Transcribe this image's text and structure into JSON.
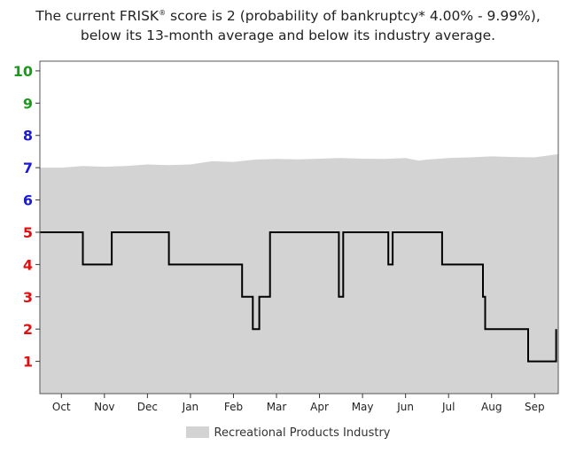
{
  "caption": {
    "line1_before": "The current FRISK",
    "line1_reg": "®",
    "line1_after": " score is 2 (probability of bankruptcy* 4.00% - 9.99%),",
    "line2": "below its 13-month average and below its industry average."
  },
  "colors": {
    "industry_fill": "#d3d3d3",
    "score_line": "#000000",
    "frame": "#555555",
    "y_tick_green": "#1a9a1a",
    "y_tick_blue": "#1a1ad8",
    "y_tick_red": "#e01010"
  },
  "chart_data": {
    "type": "area",
    "title": "",
    "xlabel": "",
    "ylabel": "",
    "ylim": [
      0,
      10.3
    ],
    "grid": false,
    "legend_position": "bottom",
    "y_ticks": [
      {
        "label": "10",
        "value": 10,
        "color": "green"
      },
      {
        "label": "9",
        "value": 9,
        "color": "green"
      },
      {
        "label": "8",
        "value": 8,
        "color": "blue"
      },
      {
        "label": "7",
        "value": 7,
        "color": "blue"
      },
      {
        "label": "6",
        "value": 6,
        "color": "blue"
      },
      {
        "label": "5",
        "value": 5,
        "color": "red"
      },
      {
        "label": "4",
        "value": 4,
        "color": "red"
      },
      {
        "label": "3",
        "value": 3,
        "color": "red"
      },
      {
        "label": "2",
        "value": 2,
        "color": "red"
      },
      {
        "label": "1",
        "value": 1,
        "color": "red"
      }
    ],
    "x_ticks": [
      {
        "label": "Oct",
        "month": 0.5
      },
      {
        "label": "Nov",
        "month": 1.5
      },
      {
        "label": "Dec",
        "month": 2.5
      },
      {
        "label": "Jan",
        "month": 3.5
      },
      {
        "label": "Feb",
        "month": 4.5
      },
      {
        "label": "Mar",
        "month": 5.5
      },
      {
        "label": "Apr",
        "month": 6.5
      },
      {
        "label": "May",
        "month": 7.5
      },
      {
        "label": "Jun",
        "month": 8.5
      },
      {
        "label": "Jul",
        "month": 9.5
      },
      {
        "label": "Aug",
        "month": 10.5
      },
      {
        "label": "Sep",
        "month": 11.5
      }
    ],
    "xlim": [
      0,
      12.05
    ],
    "series": [
      {
        "name": "Recreational Products Industry",
        "kind": "area",
        "points": [
          [
            0.0,
            7.0
          ],
          [
            0.5,
            7.0
          ],
          [
            1.0,
            7.05
          ],
          [
            1.5,
            7.03
          ],
          [
            2.0,
            7.05
          ],
          [
            2.5,
            7.1
          ],
          [
            3.0,
            7.08
          ],
          [
            3.5,
            7.1
          ],
          [
            4.0,
            7.2
          ],
          [
            4.5,
            7.18
          ],
          [
            5.0,
            7.25
          ],
          [
            5.5,
            7.27
          ],
          [
            6.0,
            7.26
          ],
          [
            6.5,
            7.28
          ],
          [
            7.0,
            7.3
          ],
          [
            7.5,
            7.28
          ],
          [
            8.0,
            7.27
          ],
          [
            8.5,
            7.3
          ],
          [
            8.8,
            7.22
          ],
          [
            9.0,
            7.25
          ],
          [
            9.5,
            7.3
          ],
          [
            10.0,
            7.32
          ],
          [
            10.5,
            7.35
          ],
          [
            11.0,
            7.33
          ],
          [
            11.5,
            7.32
          ],
          [
            12.05,
            7.42
          ]
        ]
      },
      {
        "kind": "step-line",
        "points": [
          [
            0.0,
            5
          ],
          [
            1.0,
            5
          ],
          [
            1.0,
            4
          ],
          [
            1.67,
            4
          ],
          [
            1.67,
            5
          ],
          [
            3.0,
            5
          ],
          [
            3.0,
            4
          ],
          [
            4.7,
            4
          ],
          [
            4.7,
            3
          ],
          [
            4.95,
            3
          ],
          [
            4.95,
            2
          ],
          [
            5.1,
            2
          ],
          [
            5.1,
            3
          ],
          [
            5.35,
            3
          ],
          [
            5.35,
            5
          ],
          [
            6.95,
            5
          ],
          [
            6.95,
            3
          ],
          [
            7.05,
            3
          ],
          [
            7.05,
            5
          ],
          [
            8.1,
            5
          ],
          [
            8.1,
            4
          ],
          [
            8.2,
            4
          ],
          [
            8.2,
            5
          ],
          [
            9.35,
            5
          ],
          [
            9.35,
            4
          ],
          [
            10.3,
            4
          ],
          [
            10.3,
            3
          ],
          [
            10.35,
            3
          ],
          [
            10.35,
            2
          ],
          [
            11.35,
            2
          ],
          [
            11.35,
            1
          ],
          [
            12.0,
            1
          ],
          [
            12.0,
            2
          ]
        ]
      }
    ]
  },
  "legend": {
    "label": "Recreational Products Industry"
  }
}
